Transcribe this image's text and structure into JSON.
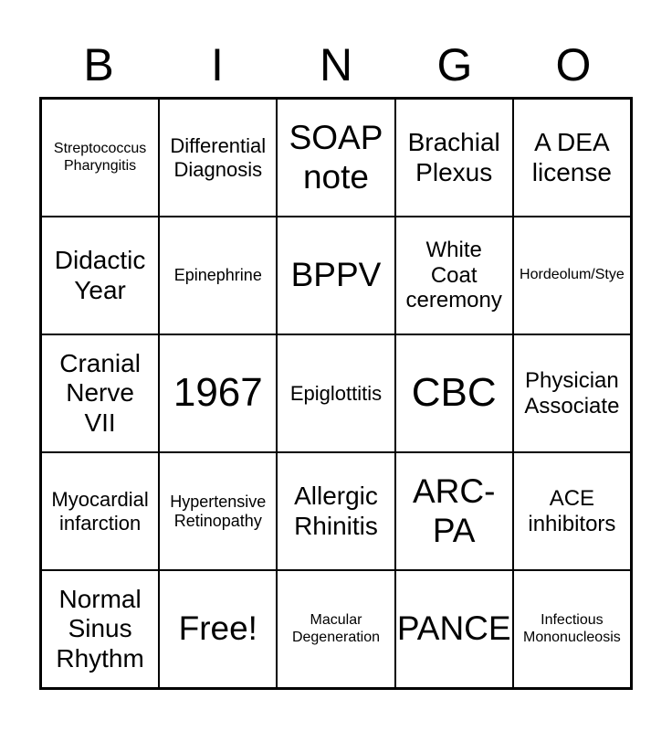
{
  "title": "BINGO",
  "colors": {
    "background": "#ffffff",
    "text": "#000000",
    "grid_line": "#000000"
  },
  "header": {
    "letters": [
      "B",
      "I",
      "N",
      "G",
      "O"
    ]
  },
  "grid": {
    "rows": 5,
    "columns": 5,
    "cells": [
      {
        "text": "Streptococcus\nPharyngitis",
        "size": "xs"
      },
      {
        "text": "Differential\nDiagnosis",
        "size": "md"
      },
      {
        "text": "SOAP\nnote",
        "size": "xl"
      },
      {
        "text": "Brachial\nPlexus",
        "size": "lg"
      },
      {
        "text": "A DEA\nlicense",
        "size": "lg"
      },
      {
        "text": "Didactic\nYear",
        "size": "lg"
      },
      {
        "text": "Epinephrine",
        "size": "sm"
      },
      {
        "text": "BPPV",
        "size": "xl"
      },
      {
        "text": "White\nCoat\nceremony",
        "size": "ml"
      },
      {
        "text": "Hordeolum/Stye",
        "size": "xs"
      },
      {
        "text": "Cranial\nNerve\nVII",
        "size": "lg"
      },
      {
        "text": "1967",
        "size": "xxl"
      },
      {
        "text": "Epiglottitis",
        "size": "md"
      },
      {
        "text": "CBC",
        "size": "xxl"
      },
      {
        "text": "Physician\nAssociate",
        "size": "ml"
      },
      {
        "text": "Myocardial\ninfarction",
        "size": "md"
      },
      {
        "text": "Hypertensive\nRetinopathy",
        "size": "sm"
      },
      {
        "text": "Allergic\nRhinitis",
        "size": "lg"
      },
      {
        "text": "ARC-\nPA",
        "size": "xl"
      },
      {
        "text": "ACE\ninhibitors",
        "size": "ml"
      },
      {
        "text": "Normal\nSinus\nRhythm",
        "size": "lg"
      },
      {
        "text": "Free!",
        "size": "xl"
      },
      {
        "text": "Macular\nDegeneration",
        "size": "xs"
      },
      {
        "text": "PANCE",
        "size": "xl"
      },
      {
        "text": "Infectious\nMononucleosis",
        "size": "xs"
      }
    ]
  }
}
